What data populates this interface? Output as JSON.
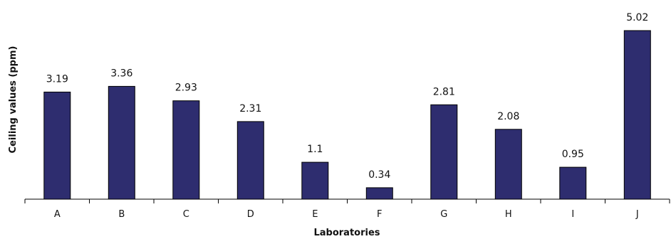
{
  "chart_data": {
    "type": "bar",
    "categories": [
      "A",
      "B",
      "C",
      "D",
      "E",
      "F",
      "G",
      "H",
      "I",
      "J"
    ],
    "values": [
      3.19,
      3.36,
      2.93,
      2.31,
      1.1,
      0.34,
      2.81,
      2.08,
      0.95,
      5.02
    ],
    "value_labels": [
      "3.19",
      "3.36",
      "2.93",
      "2.31",
      "1.1",
      "0.34",
      "2.81",
      "2.08",
      "0.95",
      "5.02"
    ],
    "title": "",
    "xlabel": "Laboratories",
    "ylabel": "Ceiling values (ppm)",
    "ylim": [
      0,
      5.02
    ],
    "grid": false,
    "legend": "none",
    "colors": {
      "bar": "#2e2d6f",
      "bar_outline": "#000000",
      "axis": "#000000"
    }
  }
}
